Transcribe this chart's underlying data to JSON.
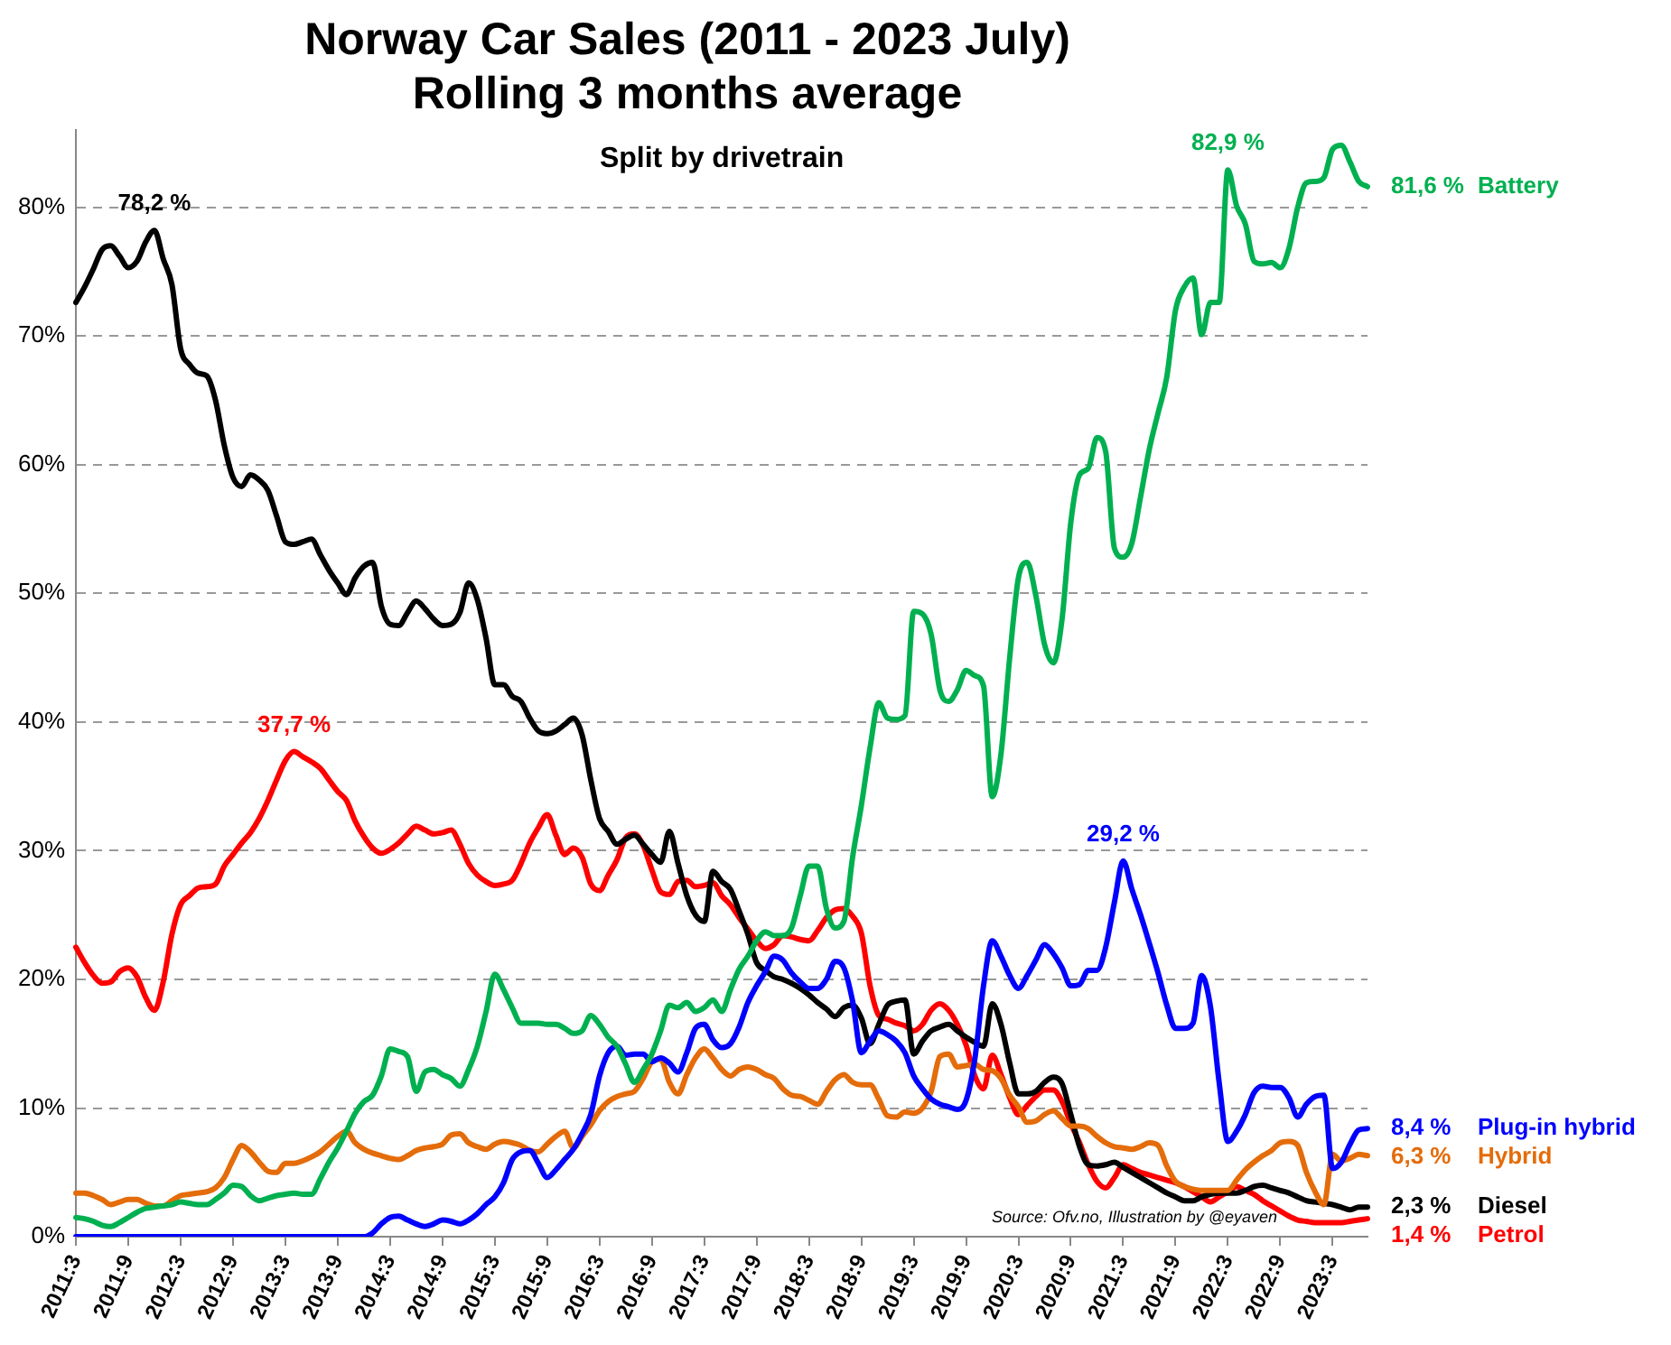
{
  "chart_data": {
    "type": "line",
    "title": "Norway Car Sales (2011 - 2023 July)",
    "subtitle": "Rolling 3 months average",
    "annotations": [
      "Split by drivetrain",
      "Source: Ofv.no, Illustration by @eyaven"
    ],
    "categories": [
      "2011:3",
      null,
      null,
      null,
      null,
      null,
      "2011:9",
      null,
      null,
      null,
      null,
      null,
      "2012:3",
      null,
      null,
      null,
      null,
      null,
      "2012:9",
      null,
      null,
      null,
      null,
      null,
      "2013:3",
      null,
      null,
      null,
      null,
      null,
      "2013:9",
      null,
      null,
      null,
      null,
      null,
      "2014:3",
      null,
      null,
      null,
      null,
      null,
      "2014:9",
      null,
      null,
      null,
      null,
      null,
      "2015:3",
      null,
      null,
      null,
      null,
      null,
      "2015:9",
      null,
      null,
      null,
      null,
      null,
      "2016:3",
      null,
      null,
      null,
      null,
      null,
      "2016:9",
      null,
      null,
      null,
      null,
      null,
      "2017:3",
      null,
      null,
      null,
      null,
      null,
      "2017:9",
      null,
      null,
      null,
      null,
      null,
      "2018:3",
      null,
      null,
      null,
      null,
      null,
      "2018:9",
      null,
      null,
      null,
      null,
      null,
      "2019:3",
      null,
      null,
      null,
      null,
      null,
      "2019:9",
      null,
      null,
      null,
      null,
      null,
      "2020:3",
      null,
      null,
      null,
      null,
      null,
      "2020:9",
      null,
      null,
      null,
      null,
      null,
      "2021:3",
      null,
      null,
      null,
      null,
      null,
      "2021:9",
      null,
      null,
      null,
      null,
      null,
      "2022:3",
      null,
      null,
      null,
      null,
      null,
      "2022:9",
      null,
      null,
      null,
      null,
      null,
      "2023:3",
      null,
      null,
      null,
      null
    ],
    "series": [
      {
        "name": "Battery",
        "color": "#00b050",
        "values": [
          1.5,
          1.4,
          1.2,
          0.9,
          0.8,
          1.1,
          1.5,
          1.9,
          2.2,
          2.3,
          2.4,
          2.5,
          2.7,
          2.6,
          2.5,
          2.5,
          2.9,
          3.4,
          4.0,
          3.9,
          3.2,
          2.8,
          3.0,
          3.2,
          3.3,
          3.4,
          3.3,
          3.3,
          4.5,
          5.8,
          6.9,
          8.2,
          9.6,
          10.5,
          11.0,
          12.5,
          14.6,
          14.4,
          14.0,
          11.3,
          12.8,
          13.0,
          12.6,
          12.3,
          11.7,
          13.0,
          14.8,
          17.5,
          20.4,
          19.2,
          17.8,
          16.6,
          16.6,
          16.6,
          16.5,
          16.5,
          16.2,
          15.8,
          16.0,
          17.2,
          16.5,
          15.5,
          14.8,
          13.4,
          12.0,
          13.0,
          14.2,
          16.0,
          18.0,
          17.8,
          18.2,
          17.5,
          17.8,
          18.4,
          17.5,
          19.2,
          20.8,
          21.8,
          23.0,
          23.7,
          23.4,
          23.4,
          24.0,
          26.5,
          28.8,
          28.8,
          25.5,
          24.0,
          24.5,
          29.5,
          33.5,
          38.0,
          41.5,
          40.3,
          40.2,
          40.5,
          48.6,
          48.4,
          46.8,
          42.5,
          41.6,
          42.5,
          44.0,
          43.6,
          42.8,
          34.2,
          37.5,
          45.0,
          51.2,
          52.4,
          49.8,
          46.0,
          44.6,
          48.0,
          55.5,
          59.2,
          59.7,
          62.1,
          61.0,
          53.5,
          52.8,
          53.9,
          57.5,
          61.2,
          64.0,
          66.8,
          72.0,
          73.8,
          74.5,
          70.1,
          72.6,
          72.6,
          82.9,
          80.1,
          78.7,
          75.8,
          75.6,
          75.7,
          75.3,
          76.8,
          80.0,
          81.9,
          82.0,
          82.3,
          84.5,
          84.8,
          83.5,
          82.0,
          81.6
        ],
        "value_labels": [
          null,
          null,
          null,
          null,
          null,
          null,
          null,
          null,
          null,
          null,
          null,
          null,
          null,
          null,
          null,
          null,
          null,
          null,
          null,
          null,
          null,
          null,
          null,
          null,
          null,
          null,
          null,
          null,
          null,
          null,
          null,
          null,
          null,
          null,
          null,
          null,
          null,
          null,
          null,
          null,
          null,
          null,
          null,
          null,
          null,
          null,
          null,
          null,
          null,
          null,
          null,
          null,
          null,
          null,
          null,
          null,
          null,
          null,
          null,
          null,
          null,
          null,
          null,
          null,
          null,
          null,
          null,
          null,
          null,
          null,
          null,
          null,
          null,
          null,
          null,
          null,
          null,
          null,
          null,
          null,
          null,
          null,
          null,
          null,
          null,
          null,
          null,
          null,
          null,
          null,
          null,
          null,
          null,
          null,
          null,
          null,
          null,
          null,
          null,
          null,
          null,
          null,
          null,
          null,
          null,
          null,
          null,
          null,
          null,
          null,
          null,
          null,
          null,
          null,
          null,
          null,
          null,
          null,
          null,
          null,
          null,
          null,
          null,
          null,
          null,
          null,
          null,
          null,
          null,
          null,
          null,
          null,
          "82,9 %",
          null,
          null,
          null,
          null,
          null,
          null,
          null,
          null,
          null,
          null,
          null,
          null,
          null,
          null,
          null,
          "81,6 %"
        ]
      },
      {
        "name": "Plug-in hybrid",
        "color": "#0000ff",
        "values": [
          0,
          0,
          0,
          0,
          0,
          0,
          0,
          0,
          0,
          0,
          0,
          0,
          0,
          0,
          0,
          0,
          0,
          0,
          0,
          0,
          0,
          0,
          0,
          0,
          0,
          0,
          0,
          0,
          0,
          0,
          0,
          0,
          0,
          0,
          0.3,
          1.0,
          1.5,
          1.6,
          1.3,
          1.0,
          0.8,
          1.0,
          1.3,
          1.2,
          1.0,
          1.3,
          1.8,
          2.5,
          3.1,
          4.2,
          6.0,
          6.6,
          6.7,
          5.7,
          4.6,
          5.2,
          6.0,
          6.8,
          8.0,
          9.5,
          12.5,
          14.3,
          14.8,
          14.1,
          14.2,
          14.2,
          13.6,
          13.9,
          13.5,
          12.8,
          14.3,
          16.2,
          16.5,
          15.3,
          14.7,
          15.0,
          16.3,
          18.2,
          19.5,
          20.6,
          21.8,
          21.5,
          20.5,
          19.8,
          19.3,
          19.3,
          20.0,
          21.4,
          20.9,
          18.3,
          14.3,
          15.2,
          16.0,
          15.7,
          15.2,
          14.3,
          12.5,
          11.5,
          10.7,
          10.3,
          10.1,
          9.9,
          10.6,
          13.8,
          19.5,
          23.0,
          21.8,
          20.3,
          19.3,
          20.3,
          21.5,
          22.7,
          22.0,
          20.9,
          19.5,
          19.6,
          20.7,
          20.7,
          22.5,
          26.0,
          29.2,
          27.0,
          25.0,
          22.8,
          20.5,
          18.0,
          16.2,
          16.2,
          16.6,
          20.3,
          17.9,
          12.0,
          7.4,
          8.2,
          9.5,
          11.2,
          11.7,
          11.6,
          11.6,
          10.8,
          9.3,
          10.3,
          10.9,
          11.0,
          5.3,
          5.8,
          7.2,
          8.3,
          8.4
        ],
        "value_labels": [
          null,
          null,
          null,
          null,
          null,
          null,
          null,
          null,
          null,
          null,
          null,
          null,
          null,
          null,
          null,
          null,
          null,
          null,
          null,
          null,
          null,
          null,
          null,
          null,
          null,
          null,
          null,
          null,
          null,
          null,
          null,
          null,
          null,
          null,
          null,
          null,
          null,
          null,
          null,
          null,
          null,
          null,
          null,
          null,
          null,
          null,
          null,
          null,
          null,
          null,
          null,
          null,
          null,
          null,
          null,
          null,
          null,
          null,
          null,
          null,
          null,
          null,
          null,
          null,
          null,
          null,
          null,
          null,
          null,
          null,
          null,
          null,
          null,
          null,
          null,
          null,
          null,
          null,
          null,
          null,
          null,
          null,
          null,
          null,
          null,
          null,
          null,
          null,
          null,
          null,
          null,
          null,
          null,
          null,
          null,
          null,
          null,
          null,
          null,
          null,
          null,
          null,
          null,
          null,
          null,
          null,
          null,
          null,
          null,
          null,
          null,
          null,
          null,
          null,
          null,
          null,
          null,
          null,
          null,
          null,
          "29,2 %",
          null,
          null,
          null,
          null,
          null,
          null,
          null,
          null,
          null,
          null,
          null,
          null,
          null,
          null,
          null,
          null,
          null,
          null,
          null,
          null,
          null,
          null,
          null,
          null,
          null,
          null,
          null,
          "8,4 %"
        ]
      },
      {
        "name": "Hybrid",
        "color": "#e46c0a",
        "values": [
          3.4,
          3.4,
          3.2,
          2.9,
          2.5,
          2.7,
          2.9,
          2.9,
          2.6,
          2.4,
          2.4,
          2.8,
          3.2,
          3.3,
          3.4,
          3.5,
          3.8,
          4.6,
          6.0,
          7.1,
          6.6,
          5.8,
          5.1,
          5.0,
          5.7,
          5.7,
          5.9,
          6.2,
          6.6,
          7.2,
          7.8,
          8.2,
          7.3,
          6.8,
          6.5,
          6.3,
          6.1,
          6.0,
          6.3,
          6.7,
          6.9,
          7.0,
          7.2,
          7.9,
          8.0,
          7.3,
          7.0,
          6.8,
          7.2,
          7.4,
          7.3,
          7.1,
          6.7,
          6.6,
          7.2,
          7.8,
          8.2,
          6.9,
          7.8,
          8.7,
          9.8,
          10.5,
          10.9,
          11.1,
          11.3,
          12.3,
          13.6,
          13.8,
          12.0,
          11.1,
          12.6,
          13.9,
          14.6,
          13.9,
          13.0,
          12.5,
          13.0,
          13.2,
          13.0,
          12.6,
          12.3,
          11.5,
          11.0,
          10.9,
          10.6,
          10.3,
          11.3,
          12.2,
          12.6,
          12.0,
          11.8,
          11.8,
          10.7,
          9.4,
          9.3,
          9.7,
          9.6,
          10.0,
          11.3,
          14.0,
          14.2,
          13.2,
          13.3,
          13.4,
          13.0,
          12.9,
          12.3,
          11.0,
          10.1,
          8.9,
          9.0,
          9.5,
          9.8,
          9.2,
          8.6,
          8.6,
          8.4,
          7.8,
          7.3,
          7.0,
          6.9,
          6.8,
          7.0,
          7.3,
          7.1,
          5.5,
          4.3,
          3.9,
          3.7,
          3.6,
          3.6,
          3.6,
          3.6,
          4.4,
          5.2,
          5.8,
          6.3,
          6.7,
          7.3,
          7.4,
          7.1,
          5.0,
          3.5,
          2.5,
          6.4,
          5.9,
          6.1,
          6.4,
          6.3
        ],
        "value_labels": [
          null,
          null,
          null,
          null,
          null,
          null,
          null,
          null,
          null,
          null,
          null,
          null,
          null,
          null,
          null,
          null,
          null,
          null,
          null,
          null,
          null,
          null,
          null,
          null,
          null,
          null,
          null,
          null,
          null,
          null,
          null,
          null,
          null,
          null,
          null,
          null,
          null,
          null,
          null,
          null,
          null,
          null,
          null,
          null,
          null,
          null,
          null,
          null,
          null,
          null,
          null,
          null,
          null,
          null,
          null,
          null,
          null,
          null,
          null,
          null,
          null,
          null,
          null,
          null,
          null,
          null,
          null,
          null,
          null,
          null,
          null,
          null,
          null,
          null,
          null,
          null,
          null,
          null,
          null,
          null,
          null,
          null,
          null,
          null,
          null,
          null,
          null,
          null,
          null,
          null,
          null,
          null,
          null,
          null,
          null,
          null,
          null,
          null,
          null,
          null,
          null,
          null,
          null,
          null,
          null,
          null,
          null,
          null,
          null,
          null,
          null,
          null,
          null,
          null,
          null,
          null,
          null,
          null,
          null,
          null,
          null,
          null,
          null,
          null,
          null,
          null,
          null,
          null,
          null,
          null,
          null,
          null,
          null,
          null,
          null,
          null,
          null,
          null,
          null,
          null,
          null,
          null,
          null,
          null,
          null,
          null,
          null,
          null,
          "6,3 %"
        ]
      },
      {
        "name": "Diesel",
        "color": "#000000",
        "values": [
          72.6,
          73.8,
          75.2,
          76.7,
          77.0,
          76.2,
          75.3,
          75.8,
          77.3,
          78.2,
          76.0,
          74.0,
          69.0,
          67.8,
          67.1,
          66.9,
          65.0,
          61.5,
          59.0,
          58.3,
          59.2,
          58.8,
          58.0,
          56.0,
          54.0,
          53.8,
          54.0,
          54.2,
          53.0,
          51.8,
          50.8,
          49.9,
          51.2,
          52.1,
          52.4,
          49.0,
          47.6,
          47.5,
          48.5,
          49.4,
          48.8,
          48.0,
          47.5,
          47.6,
          48.5,
          50.8,
          49.5,
          46.5,
          42.9,
          42.9,
          42.0,
          41.6,
          40.3,
          39.3,
          39.1,
          39.3,
          39.8,
          40.3,
          39.0,
          35.5,
          32.5,
          31.5,
          30.5,
          30.9,
          31.2,
          30.5,
          29.7,
          29.1,
          31.5,
          29.0,
          26.5,
          25.0,
          24.5,
          28.4,
          27.6,
          27.0,
          25.3,
          23.5,
          21.3,
          20.7,
          20.2,
          20.0,
          19.7,
          19.3,
          18.8,
          18.2,
          17.7,
          17.1,
          17.8,
          18.0,
          17.0,
          15.0,
          16.5,
          18.0,
          18.3,
          18.4,
          14.2,
          15.2,
          16.0,
          16.3,
          16.5,
          16.0,
          15.5,
          15.1,
          14.8,
          18.1,
          16.5,
          13.5,
          11.1,
          11.1,
          11.3,
          12.0,
          12.4,
          11.9,
          9.5,
          7.0,
          5.6,
          5.5,
          5.6,
          5.8,
          5.4,
          5.0,
          4.6,
          4.2,
          3.8,
          3.4,
          3.1,
          2.8,
          2.8,
          3.1,
          3.3,
          3.4,
          3.4,
          3.4,
          3.6,
          3.9,
          4.0,
          3.8,
          3.6,
          3.4,
          3.1,
          2.8,
          2.7,
          2.6,
          2.5,
          2.3,
          2.1,
          2.3,
          2.3
        ],
        "value_labels": [
          null,
          null,
          null,
          null,
          null,
          null,
          null,
          null,
          null,
          "78,2 %",
          null,
          null,
          null,
          null,
          null,
          null,
          null,
          null,
          null,
          null,
          null,
          null,
          null,
          null,
          null,
          null,
          null,
          null,
          null,
          null,
          null,
          null,
          null,
          null,
          null,
          null,
          null,
          null,
          null,
          null,
          null,
          null,
          null,
          null,
          null,
          null,
          null,
          null,
          null,
          null,
          null,
          null,
          null,
          null,
          null,
          null,
          null,
          null,
          null,
          null,
          null,
          null,
          null,
          null,
          null,
          null,
          null,
          null,
          null,
          null,
          null,
          null,
          null,
          null,
          null,
          null,
          null,
          null,
          null,
          null,
          null,
          null,
          null,
          null,
          null,
          null,
          null,
          null,
          null,
          null,
          null,
          null,
          null,
          null,
          null,
          null,
          null,
          null,
          null,
          null,
          null,
          null,
          null,
          null,
          null,
          null,
          null,
          null,
          null,
          null,
          null,
          null,
          null,
          null,
          null,
          null,
          null,
          null,
          null,
          null,
          null,
          null,
          null,
          null,
          null,
          null,
          null,
          null,
          null,
          null,
          null,
          null,
          null,
          null,
          null,
          null,
          null,
          null,
          null,
          null,
          null,
          null,
          null,
          null,
          null,
          null,
          null,
          null,
          "2,3 %"
        ]
      },
      {
        "name": "Petrol",
        "color": "#ff0000",
        "values": [
          22.5,
          21.3,
          20.3,
          19.7,
          19.8,
          20.6,
          20.9,
          20.2,
          18.6,
          17.6,
          19.8,
          23.5,
          25.8,
          26.5,
          27.1,
          27.2,
          27.4,
          28.8,
          29.7,
          30.6,
          31.4,
          32.5,
          33.9,
          35.5,
          37.0,
          37.7,
          37.3,
          36.9,
          36.4,
          35.5,
          34.6,
          33.9,
          32.3,
          31.1,
          30.2,
          29.8,
          30.1,
          30.6,
          31.3,
          31.9,
          31.6,
          31.3,
          31.4,
          31.6,
          30.5,
          29.0,
          28.1,
          27.6,
          27.3,
          27.4,
          27.7,
          29.0,
          30.6,
          31.8,
          32.8,
          31.2,
          29.7,
          30.2,
          29.5,
          27.4,
          26.9,
          28.1,
          29.3,
          31.0,
          31.3,
          30.4,
          28.5,
          26.8,
          26.6,
          27.6,
          27.7,
          27.2,
          27.3,
          27.5,
          26.5,
          25.8,
          24.8,
          23.9,
          23.0,
          22.4,
          22.7,
          23.4,
          23.3,
          23.1,
          23.0,
          23.8,
          24.8,
          25.4,
          25.5,
          24.9,
          23.6,
          19.5,
          17.2,
          16.9,
          16.6,
          16.4,
          16.0,
          16.5,
          17.6,
          18.1,
          17.6,
          16.5,
          14.9,
          12.5,
          11.5,
          14.1,
          12.6,
          10.8,
          9.5,
          10.2,
          10.9,
          11.4,
          11.4,
          10.5,
          8.8,
          7.3,
          5.6,
          4.3,
          3.8,
          4.6,
          5.6,
          5.3,
          5.0,
          4.8,
          4.6,
          4.4,
          4.2,
          3.9,
          3.5,
          3.1,
          2.7,
          3.1,
          3.5,
          3.9,
          3.6,
          3.3,
          2.8,
          2.4,
          2.0,
          1.6,
          1.3,
          1.2,
          1.1,
          1.1,
          1.1,
          1.1,
          1.2,
          1.3,
          1.4
        ],
        "value_labels": [
          null,
          null,
          null,
          null,
          null,
          null,
          null,
          null,
          null,
          null,
          null,
          null,
          null,
          null,
          null,
          null,
          null,
          null,
          null,
          null,
          null,
          null,
          null,
          null,
          null,
          "37,7 %",
          null,
          null,
          null,
          null,
          null,
          null,
          null,
          null,
          null,
          null,
          null,
          null,
          null,
          null,
          null,
          null,
          null,
          null,
          null,
          null,
          null,
          null,
          null,
          null,
          null,
          null,
          null,
          null,
          null,
          null,
          null,
          null,
          null,
          null,
          null,
          null,
          null,
          null,
          null,
          null,
          null,
          null,
          null,
          null,
          null,
          null,
          null,
          null,
          null,
          null,
          null,
          null,
          null,
          null,
          null,
          null,
          null,
          null,
          null,
          null,
          null,
          null,
          null,
          null,
          null,
          null,
          null,
          null,
          null,
          null,
          null,
          null,
          null,
          null,
          null,
          null,
          null,
          null,
          null,
          null,
          null,
          null,
          null,
          null,
          null,
          null,
          null,
          null,
          null,
          null,
          null,
          null,
          null,
          null,
          null,
          null,
          null,
          null,
          null,
          null,
          null,
          null,
          null,
          null,
          null,
          null,
          null,
          null,
          null,
          null,
          null,
          null,
          null,
          null,
          null,
          null,
          null,
          null,
          null,
          null,
          null,
          null,
          "1,4 %"
        ]
      }
    ],
    "ylim": [
      0,
      86
    ],
    "yticks": [
      {
        "value": 0,
        "label": "0%"
      },
      {
        "value": 10,
        "label": "10%"
      },
      {
        "value": 20,
        "label": "20%"
      },
      {
        "value": 30,
        "label": "30%"
      },
      {
        "value": 40,
        "label": "40%"
      },
      {
        "value": 50,
        "label": "50%"
      },
      {
        "value": 60,
        "label": "60%"
      },
      {
        "value": 70,
        "label": "70%"
      },
      {
        "value": 80,
        "label": "80%"
      }
    ],
    "grid": "y",
    "marker": "none",
    "line_style": "solid"
  }
}
